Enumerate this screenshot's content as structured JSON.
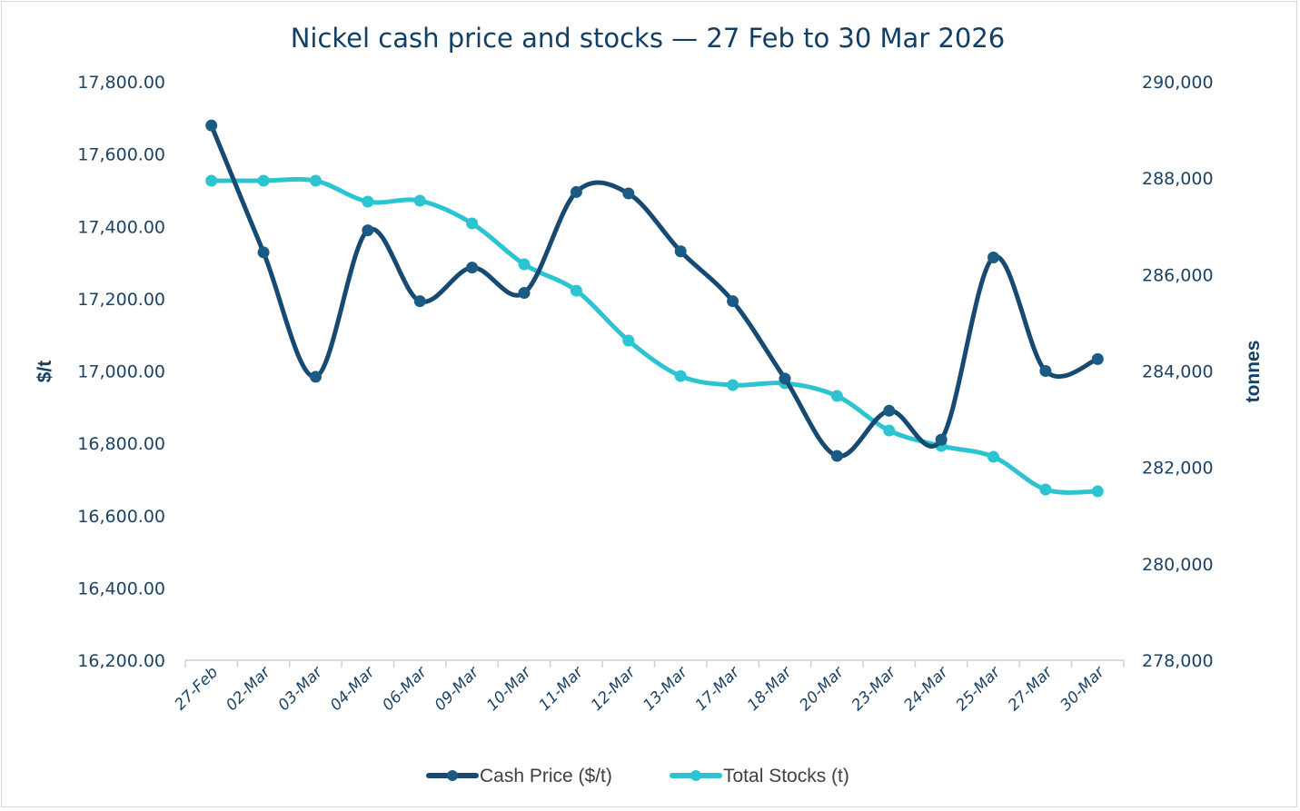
{
  "chart_data": {
    "type": "line",
    "title": "Nickel cash price and stocks — 27 Feb to 30 Mar 2026",
    "xlabel": "",
    "ylabel": "$/t",
    "y2label": "tonnes",
    "categories": [
      "27-Feb",
      "02-Mar",
      "03-Mar",
      "04-Mar",
      "06-Mar",
      "09-Mar",
      "10-Mar",
      "11-Mar",
      "12-Mar",
      "13-Mar",
      "17-Mar",
      "18-Mar",
      "20-Mar",
      "23-Mar",
      "24-Mar",
      "25-Mar",
      "27-Mar",
      "30-Mar"
    ],
    "ylim": [
      16200,
      17800
    ],
    "y2lim": [
      278000,
      290000
    ],
    "yticks": [
      "16,200.00",
      "16,400.00",
      "16,600.00",
      "16,800.00",
      "17,000.00",
      "17,200.00",
      "17,400.00",
      "17,600.00",
      "17,800.00"
    ],
    "y2ticks": [
      "278,000",
      "280,000",
      "282,000",
      "284,000",
      "286,000",
      "288,000",
      "290,000"
    ],
    "grid": false,
    "smooth": true,
    "legend_position": "bottom",
    "series": [
      {
        "name": "Cash Price ($/t)",
        "axis": "left",
        "color": "#164a72",
        "values": [
          17679,
          17328,
          16984,
          17389,
          17193,
          17286,
          17216,
          17495,
          17491,
          17331,
          17193,
          16979,
          16765,
          16890,
          16810,
          17314,
          17000,
          17033
        ]
      },
      {
        "name": "Total Stocks (t)",
        "axis": "right",
        "color": "#2cc4d0",
        "values": [
          287946,
          287946,
          287946,
          287513,
          287532,
          287061,
          286213,
          285666,
          284630,
          283895,
          283707,
          283745,
          283481,
          282765,
          282445,
          282219,
          281541,
          281503
        ]
      }
    ]
  }
}
